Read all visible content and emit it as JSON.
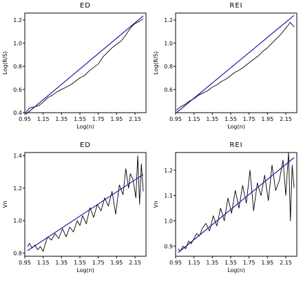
{
  "colors": {
    "data": "#000000",
    "fit": "#1a1aa6",
    "frame": "#000000",
    "background": "#ffffff"
  },
  "chart_data": [
    {
      "id": "ed-rs",
      "type": "line",
      "title": "ED",
      "xlabel": "Log(n)",
      "ylabel": "Log(R/S)",
      "xlim": [
        0.95,
        2.27
      ],
      "ylim": [
        0.4,
        1.26
      ],
      "xticks": [
        0.95,
        1.15,
        1.35,
        1.55,
        1.75,
        1.95,
        2.15
      ],
      "xtick_labels": [
        "0.95",
        "1.15",
        "1.35",
        "1.55",
        "1.75",
        "1.95",
        "2.15"
      ],
      "yticks": [
        0.4,
        0.6,
        0.8,
        1.0,
        1.2
      ],
      "ytick_labels": [
        "0.4",
        "0.6",
        "0.8",
        "1.0",
        "1.2"
      ],
      "series": [
        {
          "role": "data",
          "x": [
            0.96,
            1.0,
            1.05,
            1.1,
            1.15,
            1.2,
            1.25,
            1.3,
            1.35,
            1.4,
            1.45,
            1.5,
            1.55,
            1.6,
            1.65,
            1.7,
            1.75,
            1.8,
            1.85,
            1.9,
            1.95,
            2.0,
            2.05,
            2.1,
            2.15,
            2.2,
            2.24
          ],
          "y": [
            0.4,
            0.44,
            0.45,
            0.46,
            0.49,
            0.53,
            0.55,
            0.58,
            0.6,
            0.62,
            0.64,
            0.67,
            0.7,
            0.72,
            0.76,
            0.79,
            0.82,
            0.88,
            0.92,
            0.96,
            0.99,
            1.02,
            1.07,
            1.13,
            1.17,
            1.19,
            1.21
          ]
        },
        {
          "role": "fit",
          "x": [
            0.96,
            2.24
          ],
          "y": [
            0.385,
            1.235
          ]
        }
      ]
    },
    {
      "id": "rei-rs",
      "type": "line",
      "title": "REI",
      "xlabel": "Log(n)",
      "ylabel": "Log(R/S)",
      "xlim": [
        0.95,
        2.27
      ],
      "ylim": [
        0.4,
        1.26
      ],
      "xticks": [
        0.95,
        1.15,
        1.35,
        1.55,
        1.75,
        1.95,
        2.15
      ],
      "xtick_labels": [
        "0.95",
        "1.15",
        "1.35",
        "1.55",
        "1.75",
        "1.95",
        "2.15"
      ],
      "yticks": [
        0.6,
        0.8,
        1.0,
        1.2
      ],
      "ytick_labels": [
        "0.6",
        "0.8",
        "1.0",
        "1.2"
      ],
      "series": [
        {
          "role": "data",
          "x": [
            0.96,
            1.0,
            1.05,
            1.1,
            1.15,
            1.2,
            1.25,
            1.3,
            1.35,
            1.4,
            1.45,
            1.5,
            1.55,
            1.6,
            1.65,
            1.7,
            1.75,
            1.8,
            1.85,
            1.9,
            1.95,
            2.0,
            2.05,
            2.1,
            2.15,
            2.2,
            2.24
          ],
          "y": [
            0.42,
            0.45,
            0.47,
            0.5,
            0.52,
            0.55,
            0.57,
            0.59,
            0.62,
            0.64,
            0.67,
            0.69,
            0.72,
            0.75,
            0.77,
            0.8,
            0.83,
            0.86,
            0.89,
            0.93,
            0.96,
            1.0,
            1.04,
            1.08,
            1.13,
            1.18,
            1.14
          ]
        },
        {
          "role": "fit",
          "x": [
            0.96,
            2.24
          ],
          "y": [
            0.4,
            1.24
          ]
        }
      ]
    },
    {
      "id": "ed-vn",
      "type": "line",
      "title": "ED",
      "xlabel": "Log(n)",
      "ylabel": "Vn",
      "xlim": [
        0.95,
        2.27
      ],
      "ylim": [
        0.78,
        1.42
      ],
      "xticks": [
        0.95,
        1.15,
        1.35,
        1.55,
        1.75,
        1.95,
        2.15
      ],
      "xtick_labels": [
        "0.95",
        "1.15",
        "1.35",
        "1.55",
        "1.75",
        "1.95",
        "2.15"
      ],
      "yticks": [
        0.8,
        1.0,
        1.2,
        1.4
      ],
      "ytick_labels": [
        "0.8",
        "1.0",
        "1.2",
        "1.4"
      ],
      "series": [
        {
          "role": "data",
          "x": [
            0.98,
            1.0,
            1.03,
            1.06,
            1.09,
            1.12,
            1.15,
            1.18,
            1.2,
            1.24,
            1.28,
            1.32,
            1.36,
            1.4,
            1.44,
            1.48,
            1.52,
            1.55,
            1.58,
            1.62,
            1.66,
            1.7,
            1.74,
            1.78,
            1.82,
            1.86,
            1.9,
            1.94,
            1.98,
            2.02,
            2.05,
            2.08,
            2.1,
            2.13,
            2.16,
            2.18,
            2.2,
            2.22,
            2.24
          ],
          "y": [
            0.84,
            0.86,
            0.83,
            0.85,
            0.82,
            0.84,
            0.81,
            0.87,
            0.9,
            0.88,
            0.92,
            0.89,
            0.95,
            0.9,
            0.96,
            0.93,
            1.0,
            0.97,
            1.03,
            0.98,
            1.08,
            1.02,
            1.1,
            1.06,
            1.14,
            1.09,
            1.18,
            1.04,
            1.22,
            1.16,
            1.32,
            1.2,
            1.29,
            1.25,
            1.14,
            1.4,
            1.1,
            1.35,
            1.18
          ]
        },
        {
          "role": "fit",
          "x": [
            0.98,
            2.24
          ],
          "y": [
            0.815,
            1.285
          ]
        }
      ]
    },
    {
      "id": "rei-vn",
      "type": "line",
      "title": "REI",
      "xlabel": "Log(n)",
      "ylabel": "Vn",
      "xlim": [
        0.95,
        2.27
      ],
      "ylim": [
        0.86,
        1.27
      ],
      "xticks": [
        0.95,
        1.15,
        1.35,
        1.55,
        1.75,
        1.95,
        2.15
      ],
      "xtick_labels": [
        "0.95",
        "1.15",
        "1.35",
        "1.55",
        "1.75",
        "1.95",
        "2.15"
      ],
      "yticks": [
        0.9,
        1.0,
        1.1,
        1.2
      ],
      "ytick_labels": [
        "0.9",
        "1.0",
        "1.1",
        "1.2"
      ],
      "series": [
        {
          "role": "data",
          "x": [
            0.98,
            1.0,
            1.03,
            1.06,
            1.09,
            1.12,
            1.15,
            1.18,
            1.21,
            1.24,
            1.28,
            1.32,
            1.36,
            1.4,
            1.44,
            1.48,
            1.52,
            1.56,
            1.6,
            1.64,
            1.68,
            1.72,
            1.76,
            1.8,
            1.84,
            1.88,
            1.92,
            1.96,
            2.0,
            2.04,
            2.08,
            2.12,
            2.15,
            2.18,
            2.2,
            2.22,
            2.24
          ],
          "y": [
            0.89,
            0.88,
            0.9,
            0.89,
            0.92,
            0.91,
            0.93,
            0.95,
            0.94,
            0.97,
            0.99,
            0.96,
            1.02,
            0.98,
            1.05,
            1.0,
            1.09,
            1.03,
            1.12,
            1.05,
            1.14,
            1.07,
            1.2,
            1.04,
            1.15,
            1.1,
            1.18,
            1.08,
            1.22,
            1.12,
            1.16,
            1.24,
            1.1,
            1.27,
            1.0,
            1.22,
            1.13
          ]
        },
        {
          "role": "fit",
          "x": [
            0.98,
            2.24
          ],
          "y": [
            0.875,
            1.25
          ]
        }
      ]
    }
  ]
}
